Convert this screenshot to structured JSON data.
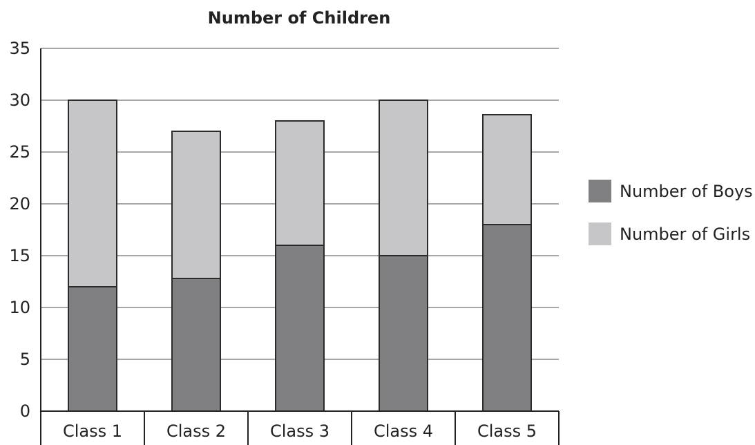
{
  "chart_data": {
    "type": "bar",
    "stacked": true,
    "title": "Number of Children",
    "categories": [
      "Class 1",
      "Class 2",
      "Class 3",
      "Class 4",
      "Class 5"
    ],
    "series": [
      {
        "name": "Number of Boys",
        "values": [
          12,
          12.8,
          16,
          15,
          18
        ],
        "color": "#808083"
      },
      {
        "name": "Number of Girls",
        "values": [
          18,
          14.2,
          12,
          15,
          10.6
        ],
        "color": "#c6c6c8"
      }
    ],
    "xlabel": "",
    "ylabel": "",
    "ylim": [
      0,
      35
    ],
    "yticks": [
      0,
      5,
      10,
      15,
      20,
      25,
      30,
      35
    ],
    "grid": true,
    "legend": "right"
  }
}
